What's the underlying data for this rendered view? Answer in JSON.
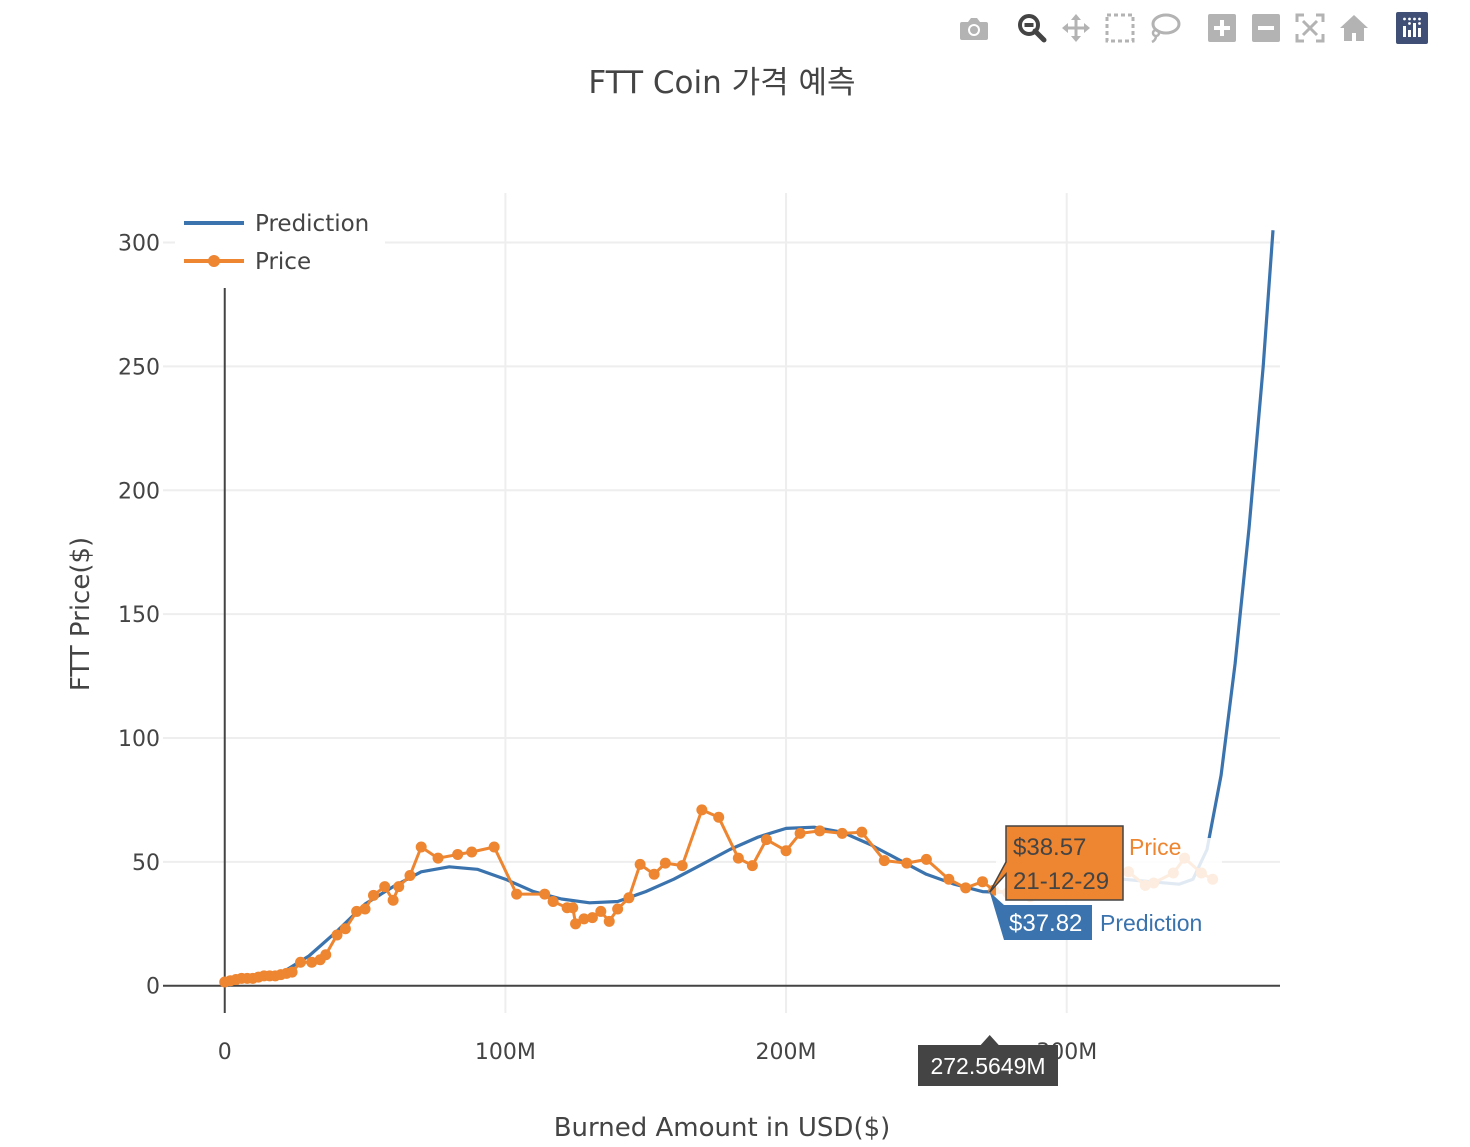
{
  "modebar": {
    "buttons": [
      "camera-icon",
      "zoom-icon",
      "pan-icon",
      "box-select-icon",
      "lasso-select-icon",
      "zoom-in-icon",
      "zoom-out-icon",
      "autoscale-icon",
      "reset-axes-icon",
      "plotly-logo-icon"
    ],
    "active": "zoom-icon",
    "icon_color": "#b3b3b3",
    "active_color": "#444444",
    "logo_color": "#3f4f75"
  },
  "chart_data": {
    "type": "line",
    "title": "FTT Coin 가격 예측",
    "xlabel": "Burned Amount in USD($)",
    "ylabel": "FTT Price($)",
    "xlim": [
      -22,
      376
    ],
    "ylim": [
      -11,
      320
    ],
    "x_ticks": [
      0,
      100,
      200,
      300
    ],
    "x_tick_labels": [
      "0",
      "100M",
      "200M",
      "300M"
    ],
    "y_ticks": [
      0,
      50,
      100,
      150,
      200,
      250,
      300
    ],
    "y_tick_labels": [
      "0",
      "50",
      "100",
      "150",
      "200",
      "250",
      "300"
    ],
    "grid": true,
    "legend_position": "top-left",
    "series": [
      {
        "name": "Prediction",
        "color": "#3a73ad",
        "mode": "lines",
        "x": [
          0,
          10,
          20,
          30,
          40,
          50,
          60,
          70,
          80,
          90,
          100,
          110,
          120,
          130,
          140,
          150,
          160,
          170,
          180,
          190,
          200,
          210,
          220,
          230,
          240,
          250,
          260,
          270,
          275,
          280,
          290,
          300,
          310,
          320,
          330,
          340,
          345,
          350,
          355,
          360,
          365,
          370,
          373.5
        ],
        "y": [
          1.5,
          3,
          5,
          12,
          22,
          33,
          40,
          46,
          48,
          47,
          43,
          38,
          35,
          33.5,
          34,
          38,
          43,
          49,
          55,
          60,
          63.5,
          64,
          62,
          57,
          51,
          45,
          41,
          38,
          37.8,
          38,
          39.5,
          41.5,
          43,
          43,
          42,
          41,
          43,
          55,
          85,
          130,
          185,
          250,
          305
        ]
      },
      {
        "name": "Price",
        "color": "#ed8531",
        "mode": "lines+markers",
        "x": [
          0,
          2,
          4,
          6,
          8,
          10,
          12,
          14,
          16,
          18,
          20,
          22,
          24,
          27,
          31,
          34,
          36,
          40,
          43,
          47,
          50,
          53,
          57,
          60,
          62,
          66,
          70,
          76,
          83,
          88,
          96,
          104,
          114,
          117,
          122,
          124,
          125,
          128,
          131,
          134,
          137,
          140,
          144,
          148,
          153,
          157,
          163,
          170,
          176,
          183,
          188,
          193,
          200,
          205,
          212,
          220,
          227,
          235,
          243,
          250,
          258,
          264,
          270,
          274,
          279,
          287,
          293,
          300,
          304,
          309,
          313,
          318,
          322,
          328,
          331,
          338,
          342,
          348,
          352
        ],
        "y": [
          1.5,
          2,
          2.5,
          3,
          3,
          3,
          3.5,
          4,
          4,
          4,
          4.5,
          5,
          5.5,
          9.5,
          9.5,
          10.5,
          12.5,
          20.5,
          23,
          30,
          31,
          36.5,
          40,
          34.5,
          40,
          44.5,
          56,
          51.5,
          53,
          54,
          56,
          37,
          37,
          34,
          31.5,
          31.5,
          25,
          27,
          27.5,
          30,
          26,
          31,
          35.5,
          49,
          45,
          49.5,
          48.5,
          71,
          68,
          51.5,
          48.5,
          59,
          54.5,
          61.5,
          62.5,
          61.5,
          62,
          50.5,
          49.5,
          51,
          43,
          39.5,
          42,
          38.57,
          37.5,
          36,
          38,
          38,
          39,
          40.5,
          41,
          44,
          46,
          40.5,
          41.5,
          45.5,
          51.5,
          45.5,
          43
        ]
      }
    ],
    "hover": {
      "x_label": "272.5649M",
      "price_value": "$38.57",
      "price_date": "21-12-29",
      "price_name": "Price",
      "prediction_value": "$37.82",
      "prediction_name": "Prediction"
    }
  }
}
